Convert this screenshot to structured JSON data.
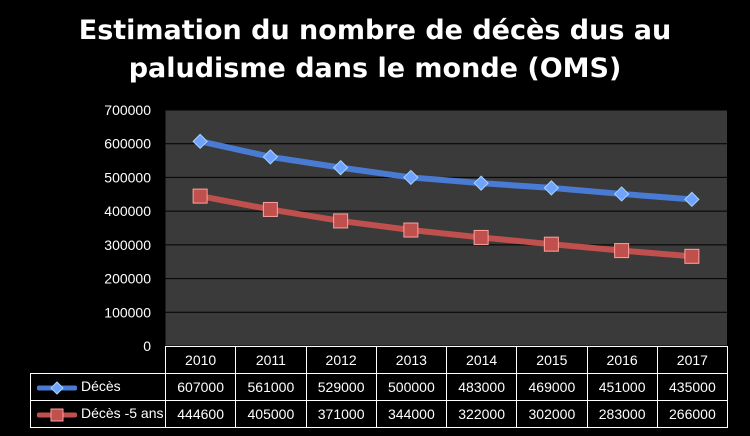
{
  "chart_data": {
    "type": "line",
    "title_lines": [
      "Estimation du nombre de décès dus au",
      "paludisme dans le monde (OMS)"
    ],
    "categories": [
      "2010",
      "2011",
      "2012",
      "2013",
      "2014",
      "2015",
      "2016",
      "2017"
    ],
    "series": [
      {
        "name": "Décès",
        "color": "#4a7bd4",
        "marker": "diamond",
        "values": [
          607000,
          561000,
          529000,
          500000,
          483000,
          469000,
          451000,
          435000
        ]
      },
      {
        "name": "Décès -5 ans",
        "color": "#c0504d",
        "marker": "square",
        "values": [
          444600,
          405000,
          371000,
          344000,
          322000,
          302000,
          283000,
          266000
        ]
      }
    ],
    "ylim": [
      0,
      700000
    ],
    "ytick_labels": [
      "0",
      "100000",
      "200000",
      "300000",
      "400000",
      "500000",
      "600000",
      "700000"
    ],
    "grid": true,
    "data_table": true,
    "plot_background": "#3a3a3a",
    "grid_color": "#000000"
  }
}
